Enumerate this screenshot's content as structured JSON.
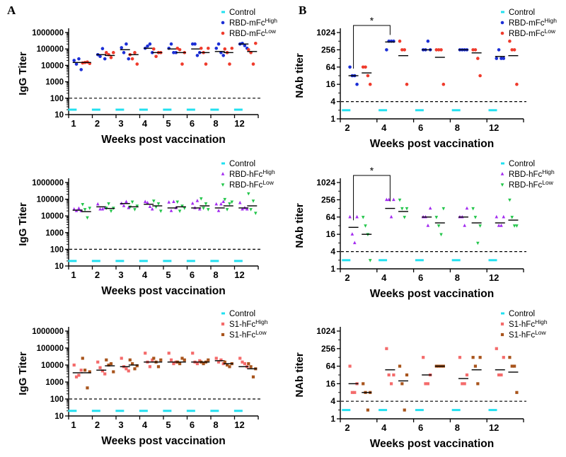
{
  "figure_labels": {
    "left": "A",
    "right": "B"
  },
  "chart_data": [
    {
      "type": "scatter",
      "panel_label": "A",
      "ylabel": "IgG Titer",
      "xlabel": "Weeks post vaccination",
      "yscale": "log",
      "ylim": [
        10,
        1000000
      ],
      "yticks": [
        "10",
        "100",
        "1000",
        "10000",
        "100000",
        "1000000"
      ],
      "categories": [
        "1",
        "2",
        "3",
        "4",
        "5",
        "6",
        "8",
        "12"
      ],
      "cutoff": 100,
      "legend": [
        {
          "label": "Control",
          "sup": ""
        },
        {
          "label": "RBD-mFc",
          "sup": "High"
        },
        {
          "label": "RBD-mFc",
          "sup": "Low"
        }
      ],
      "control_value": 20,
      "series": [
        {
          "name": "RBD-mFc High",
          "points": [
            [
              20000,
              12000,
              25000,
              5500
            ],
            [
              45000,
              35000,
              105000,
              25000
            ],
            [
              120000,
              60000,
              200000,
              25000
            ],
            [
              110000,
              150000,
              200000,
              60000
            ],
            [
              110000,
              200000,
              60000,
              60000
            ],
            [
              200000,
              200000,
              40000,
              60000
            ],
            [
              110000,
              200000,
              60000,
              40000
            ],
            [
              200000,
              220000,
              160000,
              110000
            ]
          ]
        },
        {
          "name": "RBD-mFc Low",
          "points": [
            [
              14000,
              15000,
              16000,
              13000
            ],
            [
              60000,
              45000,
              30000,
              60000
            ],
            [
              45000,
              25000,
              60000,
              12000
            ],
            [
              100000,
              35000,
              60000,
              60000
            ],
            [
              110000,
              90000,
              12000,
              60000
            ],
            [
              110000,
              60000,
              12000,
              110000
            ],
            [
              100000,
              60000,
              12000,
              110000
            ],
            [
              90000,
              60000,
              12000,
              220000
            ]
          ]
        }
      ],
      "medians": [
        [
          15000,
          15000
        ],
        [
          45000,
          40000
        ],
        [
          90000,
          45000
        ],
        [
          110000,
          60000
        ],
        [
          100000,
          60000
        ],
        [
          100000,
          60000
        ],
        [
          70000,
          60000
        ],
        [
          200000,
          70000
        ]
      ]
    },
    {
      "type": "scatter",
      "panel_label": "B",
      "ylabel": "NAb titer",
      "xlabel": "Weeks post vaccination",
      "yscale": "log",
      "ylim": [
        1,
        1024
      ],
      "yticks": [
        "1",
        "4",
        "16",
        "64",
        "256",
        "1024"
      ],
      "categories": [
        "2",
        "4",
        "6",
        "8",
        "12"
      ],
      "cutoff": 4,
      "significance": "*",
      "legend": [
        {
          "label": "Control",
          "sup": ""
        },
        {
          "label": "RBD-mFc",
          "sup": "High"
        },
        {
          "label": "RBD-mFc",
          "sup": "Low"
        }
      ],
      "control_value": 2,
      "series": [
        {
          "name": "RBD-mFc High",
          "points": [
            [
              64,
              32,
              32,
              16
            ],
            [
              256,
              512,
              512,
              512
            ],
            [
              256,
              256,
              512,
              256
            ],
            [
              256,
              256,
              256,
              256
            ],
            [
              128,
              256,
              128,
              128
            ]
          ]
        },
        {
          "name": "RBD-mFc Low",
          "points": [
            [
              64,
              64,
              32,
              16
            ],
            [
              512,
              256,
              256,
              16
            ],
            [
              256,
              256,
              256,
              16
            ],
            [
              256,
              256,
              128,
              32
            ],
            [
              512,
              256,
              256,
              16
            ]
          ]
        }
      ],
      "medians": [
        [
          32,
          40
        ],
        [
          480,
          160
        ],
        [
          256,
          140
        ],
        [
          256,
          200
        ],
        [
          150,
          160
        ]
      ]
    },
    {
      "type": "scatter",
      "ylabel": "IgG Titer",
      "xlabel": "Weeks post vaccination",
      "yscale": "log",
      "ylim": [
        10,
        1000000
      ],
      "yticks": [
        "10",
        "100",
        "1000",
        "10000",
        "100000",
        "1000000"
      ],
      "categories": [
        "1",
        "2",
        "3",
        "4",
        "5",
        "6",
        "8",
        "12"
      ],
      "cutoff": 100,
      "legend": [
        {
          "label": "Control",
          "sup": ""
        },
        {
          "label": "RBD-hFc",
          "sup": "High"
        },
        {
          "label": "RBD-hFc",
          "sup": "Low"
        }
      ],
      "control_value": 20,
      "series": [
        {
          "name": "RBD-hFc High",
          "points": [
            [
              25000,
              20000,
              28000,
              20000
            ],
            [
              50000,
              25000,
              25000,
              30000
            ],
            [
              55000,
              40000,
              70000,
              30000
            ],
            [
              70000,
              60000,
              35000,
              25000
            ],
            [
              65000,
              20000,
              70000,
              30000
            ],
            [
              55000,
              30000,
              80000,
              25000
            ],
            [
              50000,
              20000,
              50000,
              70000
            ],
            [
              60000,
              25000,
              30000,
              25000
            ]
          ]
        },
        {
          "name": "RBD-hFc Low",
          "points": [
            [
              50000,
              25000,
              8000,
              30000
            ],
            [
              30000,
              55000,
              20000,
              30000
            ],
            [
              35000,
              70000,
              25000,
              40000
            ],
            [
              80000,
              35000,
              55000,
              20000
            ],
            [
              70000,
              20000,
              40000,
              30000
            ],
            [
              110000,
              30000,
              55000,
              25000
            ],
            [
              100000,
              25000,
              55000,
              70000
            ],
            [
              220000,
              25000,
              80000,
              15000
            ]
          ]
        }
      ],
      "medians": [
        [
          22000,
          18000
        ],
        [
          35000,
          28000
        ],
        [
          55000,
          35000
        ],
        [
          50000,
          40000
        ],
        [
          30000,
          35000
        ],
        [
          30000,
          40000
        ],
        [
          30000,
          40000
        ],
        [
          30000,
          40000
        ]
      ]
    },
    {
      "type": "scatter",
      "ylabel": "NAb titer",
      "xlabel": "Weeks post vaccination",
      "yscale": "log",
      "ylim": [
        1,
        1024
      ],
      "yticks": [
        "1",
        "4",
        "16",
        "64",
        "256",
        "1024"
      ],
      "categories": [
        "2",
        "4",
        "6",
        "8",
        "12"
      ],
      "cutoff": 4,
      "significance": "*",
      "legend": [
        {
          "label": "Control",
          "sup": ""
        },
        {
          "label": "RBD-hFc",
          "sup": "High"
        },
        {
          "label": "RBD-hFc",
          "sup": "Low"
        }
      ],
      "control_value": 2,
      "series": [
        {
          "name": "RBD-hFc High",
          "points": [
            [
              64,
              16,
              8,
              64
            ],
            [
              256,
              256,
              64,
              256
            ],
            [
              64,
              64,
              32,
              128
            ],
            [
              64,
              64,
              32,
              128
            ],
            [
              64,
              32,
              32,
              64
            ]
          ]
        },
        {
          "name": "RBD-hFc Low",
          "points": [
            [
              64,
              32,
              16,
              2
            ],
            [
              256,
              128,
              64,
              128
            ],
            [
              64,
              32,
              16,
              128
            ],
            [
              128,
              64,
              8,
              32
            ],
            [
              256,
              64,
              32,
              32
            ]
          ]
        }
      ],
      "medians": [
        [
          28,
          16
        ],
        [
          128,
          100
        ],
        [
          64,
          40
        ],
        [
          64,
          40
        ],
        [
          40,
          50
        ]
      ]
    },
    {
      "type": "scatter",
      "ylabel": "IgG Titer",
      "xlabel": "Weeks post vaccination",
      "yscale": "log",
      "ylim": [
        10,
        1000000
      ],
      "yticks": [
        "10",
        "100",
        "1000",
        "10000",
        "100000",
        "1000000"
      ],
      "categories": [
        "1",
        "2",
        "3",
        "4",
        "5",
        "6",
        "8",
        "12"
      ],
      "cutoff": 100,
      "legend": [
        {
          "label": "Control",
          "sup": ""
        },
        {
          "label": "S1-hFc",
          "sup": "High"
        },
        {
          "label": "S1-hFc",
          "sup": "Low"
        }
      ],
      "control_value": 20,
      "series": [
        {
          "name": "S1-hFc High",
          "points": [
            [
              10000,
              2000,
              2500,
              5000
            ],
            [
              15000,
              7000,
              4500,
              3000
            ],
            [
              25000,
              8000,
              6000,
              4500
            ],
            [
              50000,
              15000,
              8000,
              20000
            ],
            [
              50000,
              20000,
              12000,
              15000
            ],
            [
              50000,
              15000,
              12000,
              18000
            ],
            [
              25000,
              15000,
              20000,
              12000
            ],
            [
              25000,
              15000,
              12000,
              8000
            ]
          ]
        },
        {
          "name": "S1-hFc Low",
          "points": [
            [
              25000,
              5000,
              450,
              4000
            ],
            [
              20000,
              10000,
              12000,
              4000
            ],
            [
              20000,
              12000,
              6000,
              9000
            ],
            [
              25000,
              15000,
              8000,
              20000
            ],
            [
              15000,
              12000,
              25000,
              20000
            ],
            [
              15000,
              12000,
              15000,
              20000
            ],
            [
              15000,
              10000,
              8000,
              12000
            ],
            [
              12000,
              8000,
              2000,
              6000
            ]
          ]
        }
      ],
      "medians": [
        [
          3500,
          3500
        ],
        [
          5000,
          9000
        ],
        [
          8000,
          10000
        ],
        [
          15000,
          15000
        ],
        [
          15000,
          15000
        ],
        [
          15000,
          15000
        ],
        [
          18000,
          12000
        ],
        [
          8000,
          6000
        ]
      ]
    },
    {
      "type": "scatter",
      "ylabel": "NAb titer",
      "xlabel": "Weeks post vaccination",
      "yscale": "log",
      "ylim": [
        1,
        1024
      ],
      "yticks": [
        "1",
        "4",
        "16",
        "64",
        "256",
        "1024"
      ],
      "categories": [
        "2",
        "4",
        "6",
        "8",
        "12"
      ],
      "cutoff": 4,
      "legend": [
        {
          "label": "Control",
          "sup": ""
        },
        {
          "label": "S1-hFc",
          "sup": "High"
        },
        {
          "label": "S1-hFc",
          "sup": "Low"
        }
      ],
      "control_value": 2,
      "series": [
        {
          "name": "S1-hFc High",
          "points": [
            [
              64,
              8,
              8,
              16
            ],
            [
              256,
              32,
              16,
              32
            ],
            [
              128,
              16,
              16,
              32
            ],
            [
              128,
              16,
              16,
              32
            ],
            [
              256,
              32,
              32,
              128
            ]
          ]
        },
        {
          "name": "S1-hFc Low",
          "points": [
            [
              16,
              8,
              2,
              8
            ],
            [
              64,
              16,
              2,
              32
            ],
            [
              64,
              64,
              64,
              64
            ],
            [
              128,
              64,
              16,
              128
            ],
            [
              128,
              64,
              64,
              8
            ]
          ]
        }
      ],
      "medians": [
        [
          16,
          8
        ],
        [
          48,
          20
        ],
        [
          32,
          64
        ],
        [
          24,
          48
        ],
        [
          48,
          40
        ]
      ]
    }
  ],
  "colors": {
    "control": "#22e0f0",
    "rbd_mfc_high": "#1c2fd6",
    "rbd_mfc_low": "#ef3b2c",
    "rbd_hfc_high": "#a32bf0",
    "rbd_hfc_low": "#22c54a",
    "s1_hfc_high": "#f46b6b",
    "s1_hfc_low": "#a8541c",
    "median": "#000000"
  }
}
